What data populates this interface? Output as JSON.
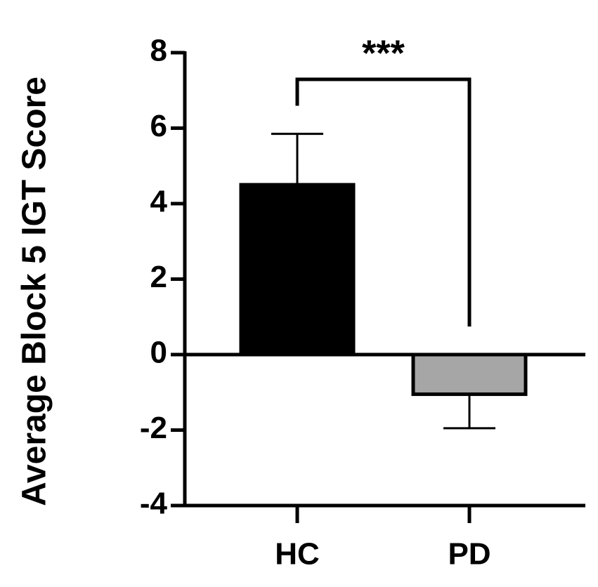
{
  "chart_data": {
    "type": "bar",
    "ylabel": "Average Block 5 IGT Score",
    "categories": [
      "HC",
      "PD"
    ],
    "values": [
      4.5,
      -1.05
    ],
    "errors": [
      1.35,
      0.9
    ],
    "colors": [
      "#000000",
      "#a6a6a6"
    ],
    "ylim": [
      -4,
      8
    ],
    "yticks": [
      -4,
      -2,
      0,
      2,
      4,
      6,
      8
    ],
    "significance": "***"
  }
}
